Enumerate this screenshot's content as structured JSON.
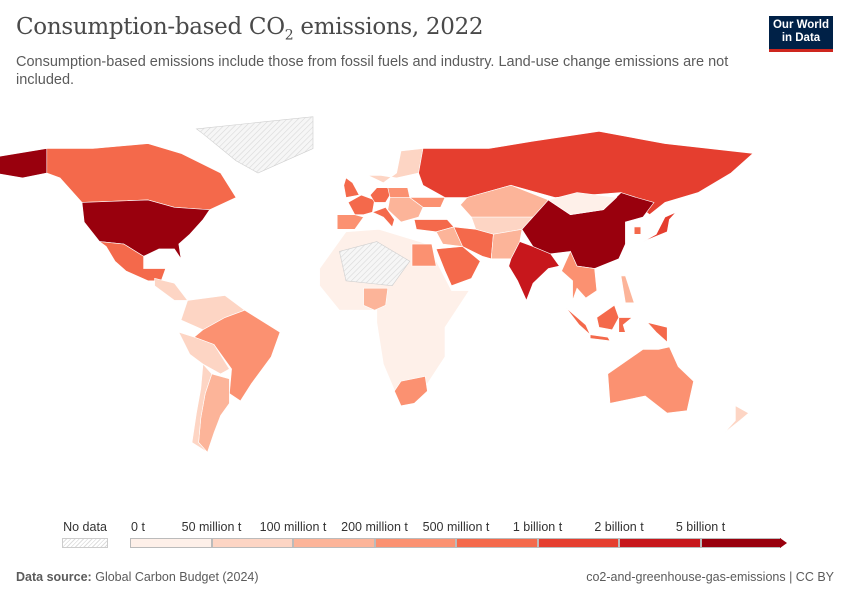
{
  "header": {
    "title_pre": "Consumption-based CO",
    "title_sub": "2",
    "title_post": " emissions, 2022",
    "subtitle": "Consumption-based emissions include those from fossil fuels and industry. Land-use change emissions are not included.",
    "logo_line1": "Our World",
    "logo_line2": "in Data"
  },
  "legend": {
    "no_data_label": "No data",
    "tick_labels": [
      "0 t",
      "50 million t",
      "100 million t",
      "200 million t",
      "500 million t",
      "1 billion t",
      "2 billion t",
      "5 billion t"
    ],
    "bin_colors": [
      "#fef0e9",
      "#fdd5c4",
      "#fcb499",
      "#fb9171",
      "#f4694b",
      "#e53e2f",
      "#c7171c",
      "#99000d"
    ],
    "no_data_color": "#e8e8e8"
  },
  "map": {
    "region_bins": {
      "united-states": 7,
      "alaska": 7,
      "canada": 4,
      "mexico": 4,
      "central-america": 1,
      "northern-south-america": 1,
      "brazil": 3,
      "peru-bolivia": 1,
      "argentina": 2,
      "chile": 1,
      "africa": 0,
      "egypt": 3,
      "south-africa": 3,
      "nigeria": 2,
      "france": 4,
      "spain": 3,
      "united-kingdom": 4,
      "germany": 4,
      "italy": 4,
      "poland": 3,
      "eastern-europe": 2,
      "scandinavia": 1,
      "ukraine": 3,
      "turkey": 4,
      "russia": 5,
      "kazakhstan": 2,
      "central-asia": 1,
      "iran": 4,
      "saudi-arabia": 4,
      "iraq-syria": 2,
      "pakistan-afghanistan": 2,
      "india": 6,
      "china": 7,
      "mongolia": 0,
      "southeast-asia": 3,
      "japan": 5,
      "south-korea": 4,
      "sumatra": 4,
      "java": 4,
      "borneo": 4,
      "sulawesi": 4,
      "papua": 4,
      "philippines": 2,
      "australia": 3,
      "new-zealand": 1
    },
    "no_data_regions": [
      "greenland",
      "sahara"
    ]
  },
  "footer": {
    "source_label": "Data source:",
    "source": "Global Carbon Budget (2024)",
    "right": "co2-and-greenhouse-gas-emissions | CC BY"
  }
}
